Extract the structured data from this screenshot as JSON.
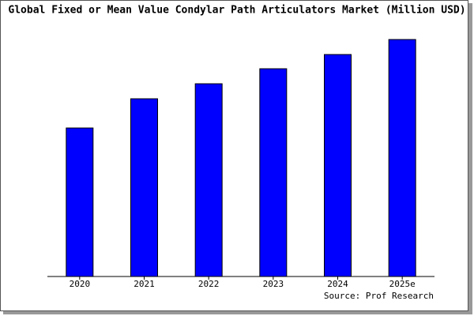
{
  "chart_data": {
    "type": "bar",
    "title": "Global Fixed or Mean Value Condylar Path Articulators Market (Million USD)",
    "categories": [
      "2020",
      "2021",
      "2022",
      "2023",
      "2024",
      "2025e"
    ],
    "values": [
      188,
      225,
      244,
      263,
      281,
      300
    ],
    "color": "#0000ff",
    "ylim": [
      0,
      300
    ],
    "source": "Source: Prof Research"
  }
}
